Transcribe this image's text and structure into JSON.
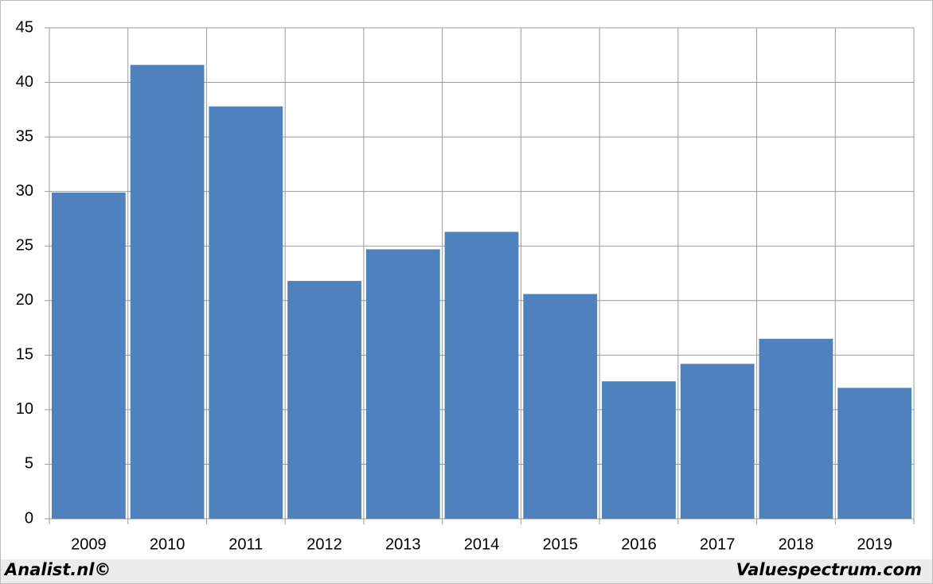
{
  "chart_data": {
    "type": "bar",
    "categories": [
      "2009",
      "2010",
      "2011",
      "2012",
      "2013",
      "2014",
      "2015",
      "2016",
      "2017",
      "2018",
      "2019"
    ],
    "values": [
      29.9,
      41.6,
      37.8,
      21.8,
      24.7,
      26.3,
      20.6,
      12.6,
      14.2,
      16.5,
      12.0
    ],
    "color": "#4f81bd",
    "ylim": [
      0,
      45
    ],
    "yticks": [
      0,
      5,
      10,
      15,
      20,
      25,
      30,
      35,
      40,
      45
    ],
    "grid": true,
    "footer_left": "Analist.nl©",
    "footer_right": "Valuespectrum.com"
  }
}
